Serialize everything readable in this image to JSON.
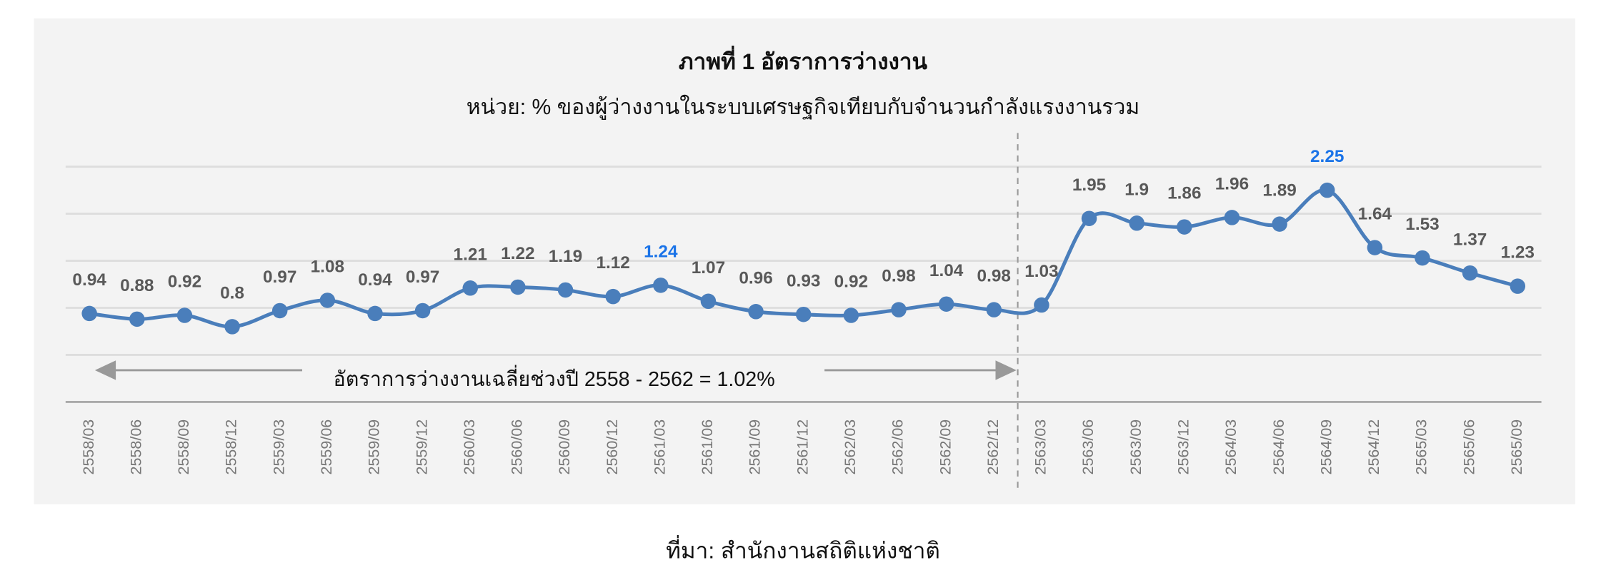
{
  "chart_data": {
    "type": "line",
    "title": "ภาพที่ 1 อัตราการว่างงาน",
    "subtitle": "หน่วย: % ของผู้ว่างงานในระบบเศรษฐกิจเทียบกับจำนวนกำลังแรงงานรวม",
    "categories": [
      "2558/03",
      "2558/06",
      "2558/09",
      "2558/12",
      "2559/03",
      "2559/06",
      "2559/09",
      "2559/12",
      "2560/03",
      "2560/06",
      "2560/09",
      "2560/12",
      "2561/03",
      "2561/06",
      "2561/09",
      "2561/12",
      "2562/03",
      "2562/06",
      "2562/09",
      "2562/12",
      "2563/03",
      "2563/06",
      "2563/09",
      "2563/12",
      "2564/03",
      "2564/06",
      "2564/09",
      "2564/12",
      "2565/03",
      "2565/06",
      "2565/09"
    ],
    "values": [
      0.94,
      0.88,
      0.92,
      0.8,
      0.97,
      1.08,
      0.94,
      0.97,
      1.21,
      1.22,
      1.19,
      1.12,
      1.24,
      1.07,
      0.96,
      0.93,
      0.92,
      0.98,
      1.04,
      0.98,
      1.03,
      1.95,
      1.9,
      1.86,
      1.96,
      1.89,
      2.25,
      1.64,
      1.53,
      1.37,
      1.23
    ],
    "color": "#4a7ebb",
    "label_color": "#595959",
    "highlight": {
      "color": "#1a73e8",
      "categories": [
        "2561/03",
        "2564/09"
      ]
    },
    "ylim": [
      0,
      2.5
    ],
    "yticks": [
      0,
      0.5,
      1,
      1.5,
      2,
      2.5
    ],
    "grid": true,
    "divider_after": "2562/12",
    "annotation": "อัตราการว่างงานเฉลี่ยช่วงปี 2558 - 2562 = 1.02%",
    "source": "ที่มา: สำนักงานสถิติแห่งชาติ"
  }
}
